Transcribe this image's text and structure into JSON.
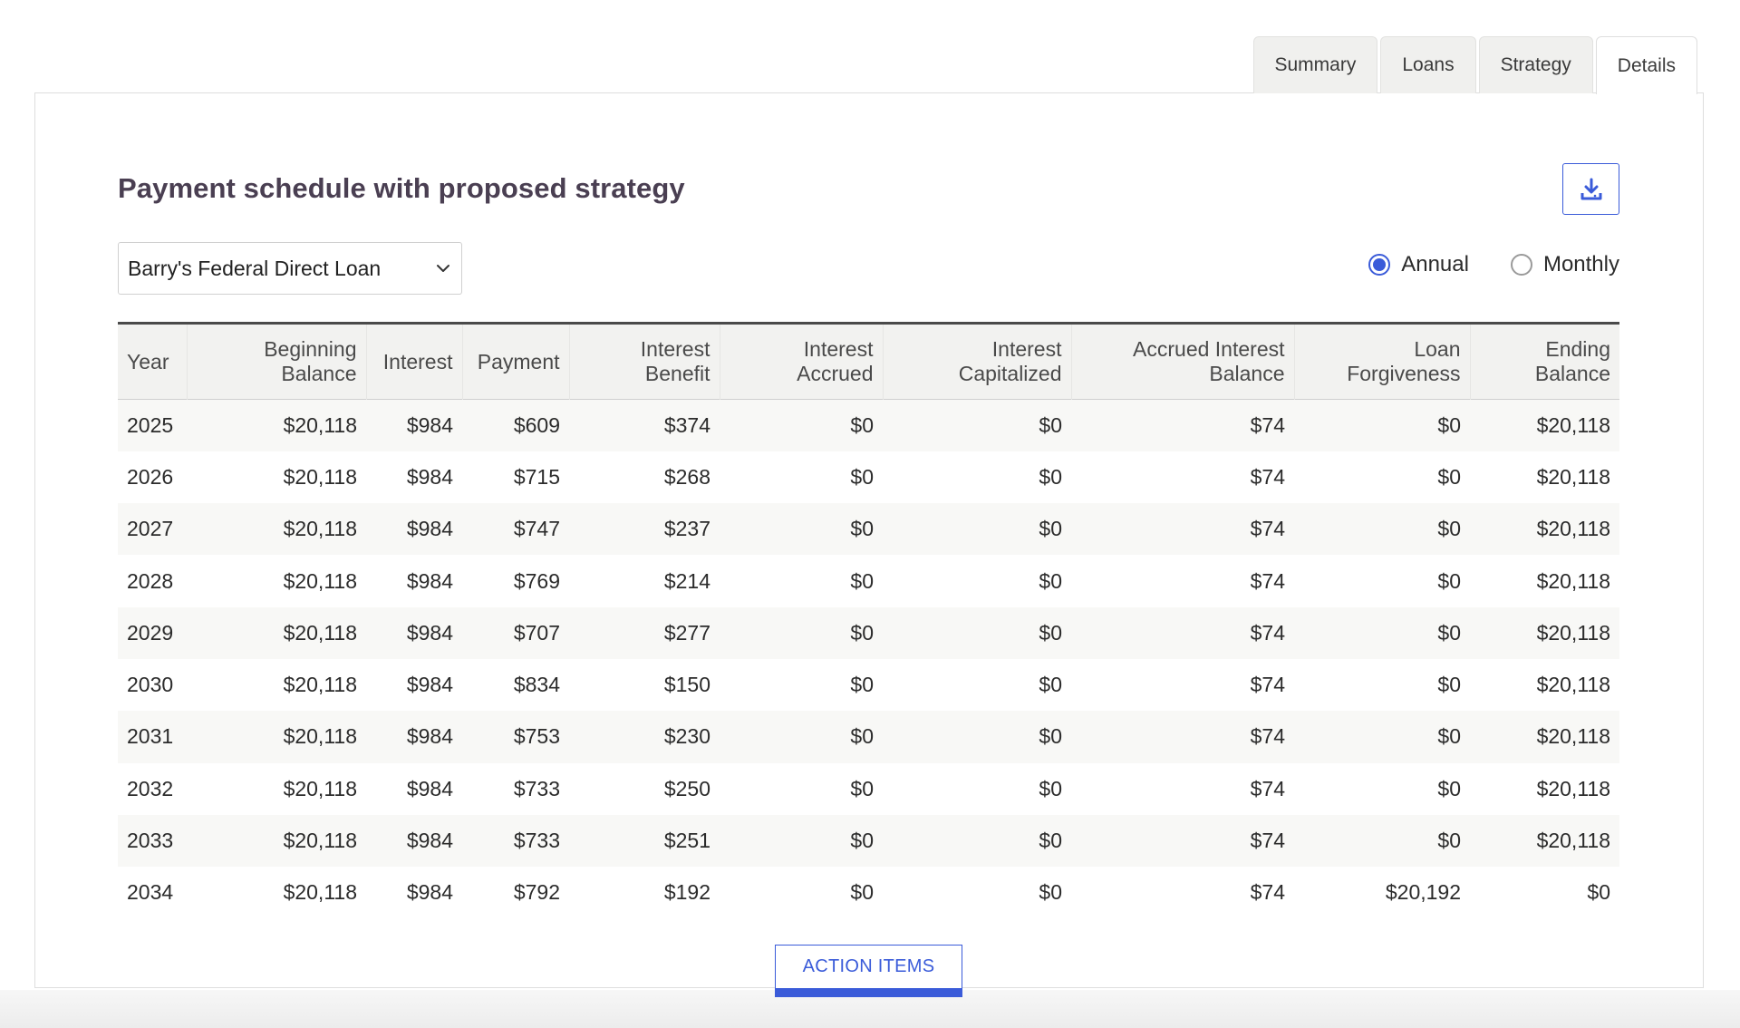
{
  "tabs": [
    {
      "label": "Summary",
      "active": false
    },
    {
      "label": "Loans",
      "active": false
    },
    {
      "label": "Strategy",
      "active": false
    },
    {
      "label": "Details",
      "active": true
    }
  ],
  "section": {
    "title": "Payment schedule with proposed strategy",
    "download_icon": "download-icon"
  },
  "loan_select": {
    "value": "Barry's Federal Direct Loan",
    "icon": "chevron-down-icon"
  },
  "period_toggle": {
    "options": [
      {
        "label": "Annual",
        "checked": true
      },
      {
        "label": "Monthly",
        "checked": false
      }
    ]
  },
  "table": {
    "headers": [
      {
        "line1": "Year",
        "line2": ""
      },
      {
        "line1": "Beginning",
        "line2": "Balance"
      },
      {
        "line1": "Interest",
        "line2": ""
      },
      {
        "line1": "Payment",
        "line2": ""
      },
      {
        "line1": "Interest",
        "line2": "Benefit"
      },
      {
        "line1": "Interest",
        "line2": "Accrued"
      },
      {
        "line1": "Interest",
        "line2": "Capitalized"
      },
      {
        "line1": "Accrued Interest",
        "line2": "Balance"
      },
      {
        "line1": "Loan",
        "line2": "Forgiveness"
      },
      {
        "line1": "Ending",
        "line2": "Balance"
      }
    ],
    "rows": [
      [
        "2025",
        "$20,118",
        "$984",
        "$609",
        "$374",
        "$0",
        "$0",
        "$74",
        "$0",
        "$20,118"
      ],
      [
        "2026",
        "$20,118",
        "$984",
        "$715",
        "$268",
        "$0",
        "$0",
        "$74",
        "$0",
        "$20,118"
      ],
      [
        "2027",
        "$20,118",
        "$984",
        "$747",
        "$237",
        "$0",
        "$0",
        "$74",
        "$0",
        "$20,118"
      ],
      [
        "2028",
        "$20,118",
        "$984",
        "$769",
        "$214",
        "$0",
        "$0",
        "$74",
        "$0",
        "$20,118"
      ],
      [
        "2029",
        "$20,118",
        "$984",
        "$707",
        "$277",
        "$0",
        "$0",
        "$74",
        "$0",
        "$20,118"
      ],
      [
        "2030",
        "$20,118",
        "$984",
        "$834",
        "$150",
        "$0",
        "$0",
        "$74",
        "$0",
        "$20,118"
      ],
      [
        "2031",
        "$20,118",
        "$984",
        "$753",
        "$230",
        "$0",
        "$0",
        "$74",
        "$0",
        "$20,118"
      ],
      [
        "2032",
        "$20,118",
        "$984",
        "$733",
        "$250",
        "$0",
        "$0",
        "$74",
        "$0",
        "$20,118"
      ],
      [
        "2033",
        "$20,118",
        "$984",
        "$733",
        "$251",
        "$0",
        "$0",
        "$74",
        "$0",
        "$20,118"
      ],
      [
        "2034",
        "$20,118",
        "$984",
        "$792",
        "$192",
        "$0",
        "$0",
        "$74",
        "$20,192",
        "$0"
      ]
    ]
  },
  "action_button": {
    "label": "ACTION ITEMS"
  },
  "colors": {
    "accent": "#3a5bd9",
    "header_bg": "#f2f2f0",
    "row_alt": "#f8f8f6"
  }
}
